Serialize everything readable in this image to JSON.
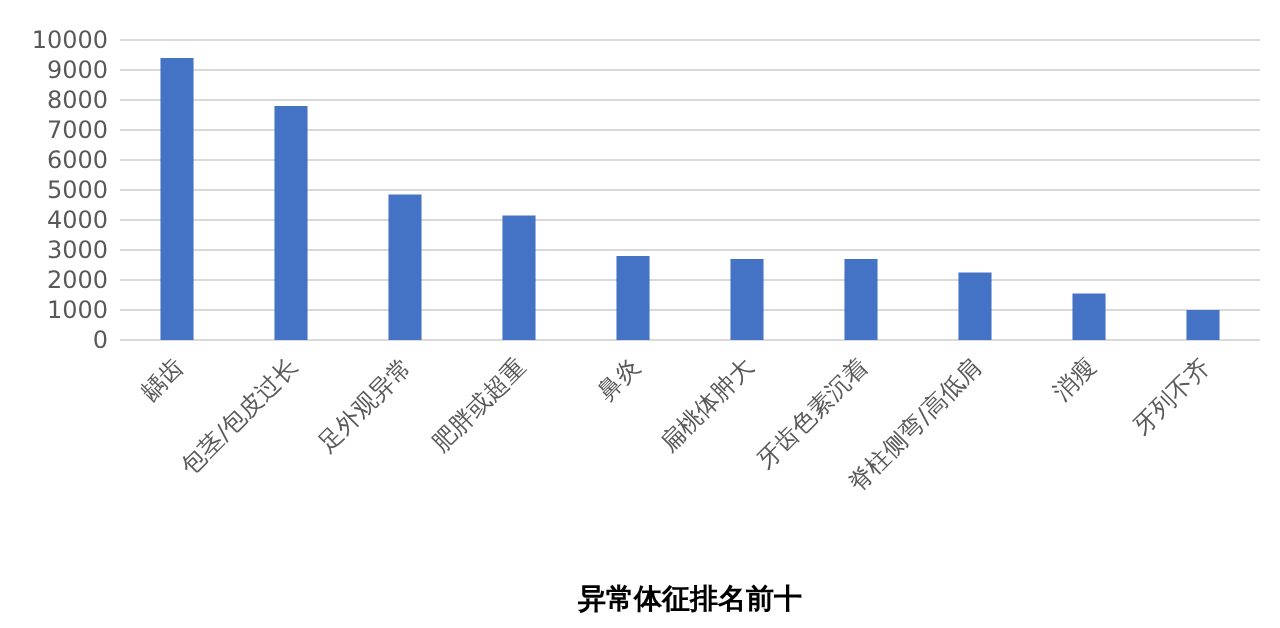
{
  "chart_data": {
    "type": "bar",
    "xlabel": "异常体征排名前十",
    "categories": [
      "龋齿",
      "包茎/包皮过长",
      "足外观异常",
      "肥胖或超重",
      "鼻炎",
      "扁桃体肿大",
      "牙齿色素沉着",
      "脊柱侧弯/高低肩",
      "消瘦",
      "牙列不齐"
    ],
    "values": [
      9400,
      7800,
      4850,
      4150,
      2800,
      2700,
      2700,
      2250,
      1550,
      1000
    ],
    "color": "#4472c4",
    "ylim": [
      0,
      10000
    ],
    "yticks": [
      0,
      1000,
      2000,
      3000,
      4000,
      5000,
      6000,
      7000,
      8000,
      9000,
      10000
    ],
    "grid": "y"
  }
}
